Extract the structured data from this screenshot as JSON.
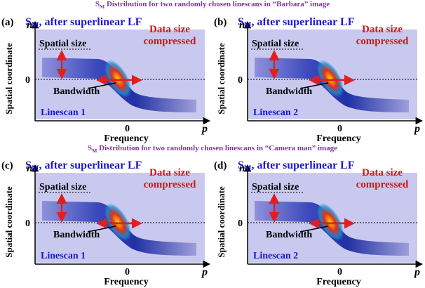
{
  "groups": [
    {
      "heading": {
        "s": "S",
        "sub": "M",
        "text": " Distribution for two randomly chosen linescans in “Barbara” image"
      },
      "panels": [
        {
          "label": "(a)",
          "title": {
            "s": "S",
            "sub": "M",
            "text": ", after superlinear LF"
          },
          "y_axis": "Spatial coordinate",
          "y_symbol": "n",
          "y_zero": "0",
          "x_axis": "Frequency",
          "x_symbol": "p",
          "x_zero": "0",
          "spatial": "Spatial size",
          "compressed": [
            "Data size",
            "compressed"
          ],
          "bandwidth": "Bandwidth",
          "linescan": "Linescan 1"
        },
        {
          "label": "(b)",
          "title": {
            "s": "S",
            "sub": "M",
            "text": ", after superlinear LF"
          },
          "y_axis": "Spatial coordinate",
          "y_symbol": "n",
          "y_zero": "0",
          "x_axis": "Frequency",
          "x_symbol": "p",
          "x_zero": "0",
          "spatial": "Spatial size",
          "compressed": [
            "Data size",
            "compressed"
          ],
          "bandwidth": "Bandwidth",
          "linescan": "Linescan 2"
        }
      ]
    },
    {
      "heading": {
        "s": "S",
        "sub": "M",
        "text": " Distribution for two randomly chosen linescans in “Camera man” image"
      },
      "panels": [
        {
          "label": "(c)",
          "title": {
            "s": "S",
            "sub": "M",
            "text": ", after superlinear LF"
          },
          "y_axis": "Spatial coordinate",
          "y_symbol": "n",
          "y_zero": "0",
          "x_axis": "Frequency",
          "x_symbol": "p",
          "x_zero": "0",
          "spatial": "Spatial size",
          "compressed": [
            "Data size",
            "compressed"
          ],
          "bandwidth": "Bandwidth",
          "linescan": "Linescan 1"
        },
        {
          "label": "(d)",
          "title": {
            "s": "S",
            "sub": "M",
            "text": ", after superlinear LF"
          },
          "y_axis": "Spatial coordinate",
          "y_symbol": "n",
          "y_zero": "0",
          "x_axis": "Frequency",
          "x_symbol": "p",
          "x_zero": "0",
          "spatial": "Spatial size",
          "compressed": [
            "Data size",
            "compressed"
          ],
          "bandwidth": "Bandwidth",
          "linescan": "Linescan 2"
        }
      ]
    }
  ]
}
